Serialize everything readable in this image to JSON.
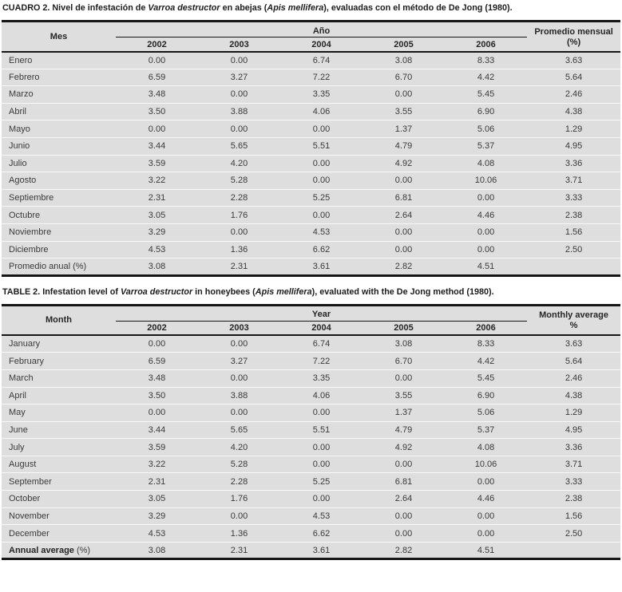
{
  "page": {
    "background": "#ffffff",
    "table_background": "#dedede",
    "border_color": "#161616",
    "row_divider_color": "#f8f8f8",
    "text_color": "#3a3a3a",
    "heading_color": "#1c1c1c"
  },
  "tables": [
    {
      "id": "spanish",
      "caption_parts": [
        {
          "text": "CUADRO 2. Nivel de infestación de ",
          "italic": false
        },
        {
          "text": "Varroa destructor",
          "italic": true
        },
        {
          "text": " en abejas (",
          "italic": false
        },
        {
          "text": "Apis mellifera",
          "italic": true
        },
        {
          "text": "), evaluadas con el método de De Jong (1980).",
          "italic": false
        }
      ],
      "month_header": "Mes",
      "year_group_header": "Año",
      "years": [
        "2002",
        "2003",
        "2004",
        "2005",
        "2006"
      ],
      "avg_header_lines": [
        "Promedio mensual",
        "(%)"
      ],
      "rows": [
        {
          "label": "Enero",
          "values": [
            "0.00",
            "0.00",
            "6.74",
            "3.08",
            "8.33"
          ],
          "avg": "3.63"
        },
        {
          "label": "Febrero",
          "values": [
            "6.59",
            "3.27",
            "7.22",
            "6.70",
            "4.42"
          ],
          "avg": "5.64"
        },
        {
          "label": "Marzo",
          "values": [
            "3.48",
            "0.00",
            "3.35",
            "0.00",
            "5.45"
          ],
          "avg": "2.46"
        },
        {
          "label": "Abril",
          "values": [
            "3.50",
            "3.88",
            "4.06",
            "3.55",
            "6.90"
          ],
          "avg": "4.38"
        },
        {
          "label": "Mayo",
          "values": [
            "0.00",
            "0.00",
            "0.00",
            "1.37",
            "5.06"
          ],
          "avg": "1.29"
        },
        {
          "label": "Junio",
          "values": [
            "3.44",
            "5.65",
            "5.51",
            "4.79",
            "5.37"
          ],
          "avg": "4.95"
        },
        {
          "label": "Julio",
          "values": [
            "3.59",
            "4.20",
            "0.00",
            "4.92",
            "4.08"
          ],
          "avg": "3.36"
        },
        {
          "label": "Agosto",
          "values": [
            "3.22",
            "5.28",
            "0.00",
            "0.00",
            "10.06"
          ],
          "avg": "3.71"
        },
        {
          "label": "Septiembre",
          "values": [
            "2.31",
            "2.28",
            "5.25",
            "6.81",
            "0.00"
          ],
          "avg": "3.33"
        },
        {
          "label": "Octubre",
          "values": [
            "3.05",
            "1.76",
            "0.00",
            "2.64",
            "4.46"
          ],
          "avg": "2.38"
        },
        {
          "label": "Noviembre",
          "values": [
            "3.29",
            "0.00",
            "4.53",
            "0.00",
            "0.00"
          ],
          "avg": "1.56"
        },
        {
          "label": "Diciembre",
          "values": [
            "4.53",
            "1.36",
            "6.62",
            "0.00",
            "0.00"
          ],
          "avg": "2.50"
        }
      ],
      "footer": {
        "label_parts": [
          {
            "text": "Promedio anual (%)",
            "bold": false
          }
        ],
        "values": [
          "3.08",
          "2.31",
          "3.61",
          "2.82",
          "4.51"
        ],
        "avg": ""
      }
    },
    {
      "id": "english",
      "caption_parts": [
        {
          "text": "TABLE 2. Infestation level of ",
          "italic": false
        },
        {
          "text": "Varroa destructor",
          "italic": true
        },
        {
          "text": " in honeybees (",
          "italic": false
        },
        {
          "text": "Apis mellifera",
          "italic": true
        },
        {
          "text": "), evaluated with the De Jong method (1980).",
          "italic": false
        }
      ],
      "month_header": "Month",
      "year_group_header": "Year",
      "years": [
        "2002",
        "2003",
        "2004",
        "2005",
        "2006"
      ],
      "avg_header_lines": [
        "Monthly average",
        "%"
      ],
      "rows": [
        {
          "label": "January",
          "values": [
            "0.00",
            "0.00",
            "6.74",
            "3.08",
            "8.33"
          ],
          "avg": "3.63"
        },
        {
          "label": "February",
          "values": [
            "6.59",
            "3.27",
            "7.22",
            "6.70",
            "4.42"
          ],
          "avg": "5.64"
        },
        {
          "label": "March",
          "values": [
            "3.48",
            "0.00",
            "3.35",
            "0.00",
            "5.45"
          ],
          "avg": "2.46"
        },
        {
          "label": "April",
          "values": [
            "3.50",
            "3.88",
            "4.06",
            "3.55",
            "6.90"
          ],
          "avg": "4.38"
        },
        {
          "label": "May",
          "values": [
            "0.00",
            "0.00",
            "0.00",
            "1.37",
            "5.06"
          ],
          "avg": "1.29"
        },
        {
          "label": "June",
          "values": [
            "3.44",
            "5.65",
            "5.51",
            "4.79",
            "5.37"
          ],
          "avg": "4.95"
        },
        {
          "label": "July",
          "values": [
            "3.59",
            "4.20",
            "0.00",
            "4.92",
            "4.08"
          ],
          "avg": "3.36"
        },
        {
          "label": "August",
          "values": [
            "3.22",
            "5.28",
            "0.00",
            "0.00",
            "10.06"
          ],
          "avg": "3.71"
        },
        {
          "label": "September",
          "values": [
            "2.31",
            "2.28",
            "5.25",
            "6.81",
            "0.00"
          ],
          "avg": "3.33"
        },
        {
          "label": "October",
          "values": [
            "3.05",
            "1.76",
            "0.00",
            "2.64",
            "4.46"
          ],
          "avg": "2.38"
        },
        {
          "label": "November",
          "values": [
            "3.29",
            "0.00",
            "4.53",
            "0.00",
            "0.00"
          ],
          "avg": "1.56"
        },
        {
          "label": "December",
          "values": [
            "4.53",
            "1.36",
            "6.62",
            "0.00",
            "0.00"
          ],
          "avg": "2.50"
        }
      ],
      "footer": {
        "label_parts": [
          {
            "text": "Annual average",
            "bold": true
          },
          {
            "text": " (%)",
            "bold": false
          }
        ],
        "values": [
          "3.08",
          "2.31",
          "3.61",
          "2.82",
          "4.51"
        ],
        "avg": ""
      }
    }
  ]
}
